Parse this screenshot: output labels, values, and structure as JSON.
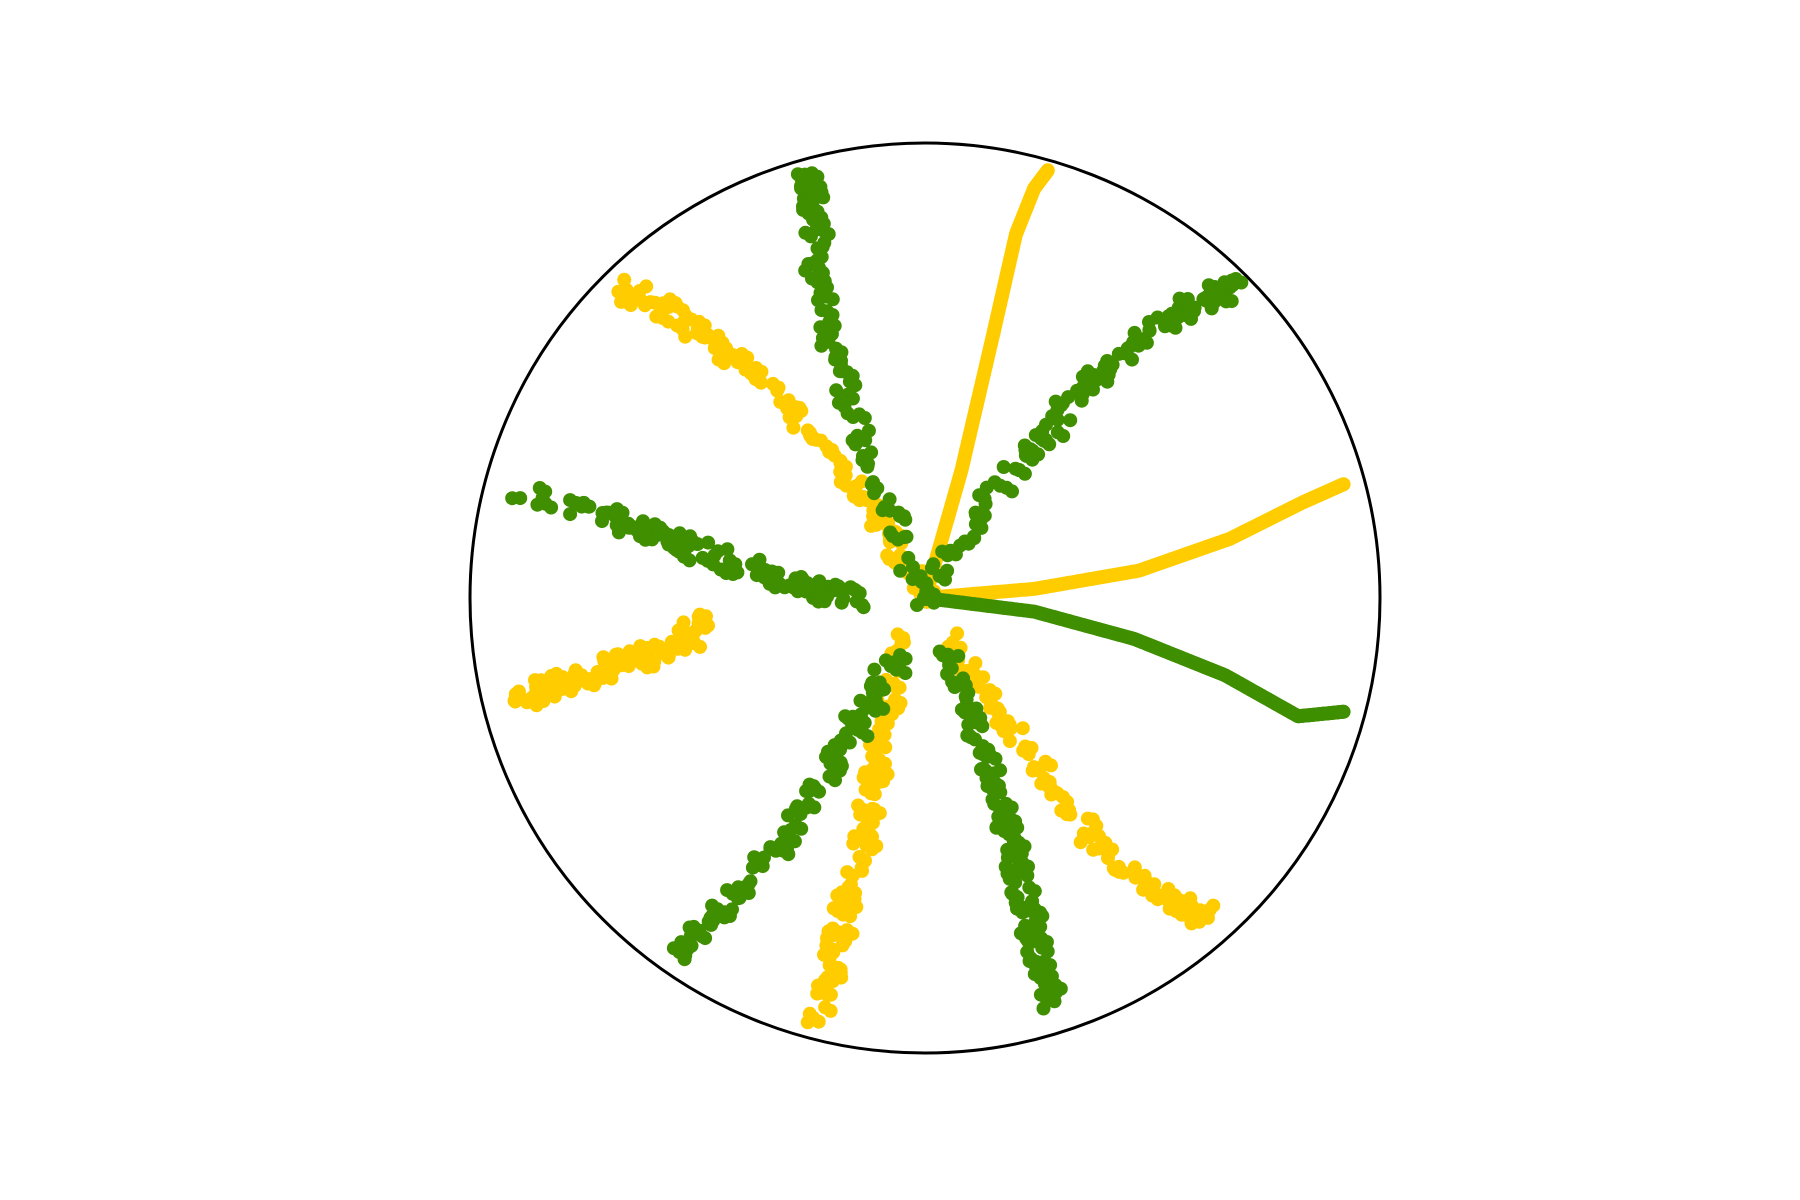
{
  "chart_data": {
    "type": "scatter",
    "title": "",
    "xlabel": "",
    "ylabel": "",
    "axes_visible": false,
    "grid": false,
    "legend": "none",
    "xlim": [
      -1.0,
      1.0
    ],
    "ylim": [
      -1.0,
      1.0
    ],
    "boundary": {
      "shape": "circle",
      "center": [
        0,
        0
      ],
      "radius": 1.0,
      "color": "#000000"
    },
    "colors": {
      "yellow": "#ffcc00",
      "green": "#3f8f00"
    },
    "series": [
      {
        "color_key": "yellow",
        "style": "solid",
        "x": [
          0.0,
          0.08,
          0.15,
          0.2,
          0.24,
          0.27
        ],
        "y": [
          0.0,
          0.28,
          0.58,
          0.8,
          0.9,
          0.94
        ]
      },
      {
        "color_key": "yellow",
        "style": "solid",
        "x": [
          0.0,
          0.24,
          0.47,
          0.67,
          0.83,
          0.92
        ],
        "y": [
          0.0,
          0.02,
          0.06,
          0.13,
          0.21,
          0.25
        ]
      },
      {
        "color_key": "yellow",
        "style": "scattered",
        "x": [
          0.0,
          -0.1,
          -0.24,
          -0.4,
          -0.55,
          -0.67
        ],
        "y": [
          0.0,
          0.17,
          0.35,
          0.51,
          0.63,
          0.68
        ]
      },
      {
        "color_key": "yellow",
        "style": "scattered",
        "x": [
          0.05,
          0.15,
          0.3,
          0.45,
          0.55,
          0.62
        ],
        "y": [
          -0.08,
          -0.25,
          -0.45,
          -0.6,
          -0.67,
          -0.7
        ]
      },
      {
        "color_key": "yellow",
        "style": "scattered",
        "x": [
          -0.05,
          -0.1,
          -0.13,
          -0.17,
          -0.2,
          -0.24
        ],
        "y": [
          -0.1,
          -0.3,
          -0.48,
          -0.66,
          -0.78,
          -0.92
        ]
      },
      {
        "color_key": "yellow",
        "style": "scattered",
        "x": [
          -0.48,
          -0.58,
          -0.68,
          -0.78,
          -0.89
        ],
        "y": [
          -0.05,
          -0.12,
          -0.14,
          -0.18,
          -0.22
        ]
      },
      {
        "color_key": "green",
        "style": "scattered",
        "x": [
          0.0,
          -0.12,
          -0.2,
          -0.24,
          -0.25,
          -0.26
        ],
        "y": [
          0.0,
          0.27,
          0.52,
          0.72,
          0.86,
          0.92
        ]
      },
      {
        "color_key": "green",
        "style": "scattered",
        "x": [
          0.0,
          0.17,
          0.34,
          0.5,
          0.62,
          0.67
        ],
        "y": [
          0.0,
          0.25,
          0.45,
          0.59,
          0.66,
          0.68
        ]
      },
      {
        "color_key": "green",
        "style": "solid",
        "x": [
          0.0,
          0.24,
          0.46,
          0.66,
          0.82,
          0.92
        ],
        "y": [
          0.0,
          -0.03,
          -0.09,
          -0.17,
          -0.26,
          -0.25
        ]
      },
      {
        "color_key": "green",
        "style": "scattered",
        "x": [
          0.05,
          0.12,
          0.17,
          0.21,
          0.24,
          0.28
        ],
        "y": [
          -0.12,
          -0.3,
          -0.47,
          -0.63,
          -0.77,
          -0.89
        ]
      },
      {
        "color_key": "green",
        "style": "scattered",
        "x": [
          -0.07,
          -0.14,
          -0.22,
          -0.3,
          -0.43,
          -0.54
        ],
        "y": [
          -0.13,
          -0.25,
          -0.38,
          -0.52,
          -0.67,
          -0.78
        ]
      },
      {
        "color_key": "green",
        "style": "scattered",
        "x": [
          -0.14,
          -0.24,
          -0.34,
          -0.47,
          -0.6,
          -0.7,
          -0.9
        ],
        "y": [
          0.0,
          0.02,
          0.05,
          0.1,
          0.14,
          0.18,
          0.23
        ]
      }
    ]
  }
}
